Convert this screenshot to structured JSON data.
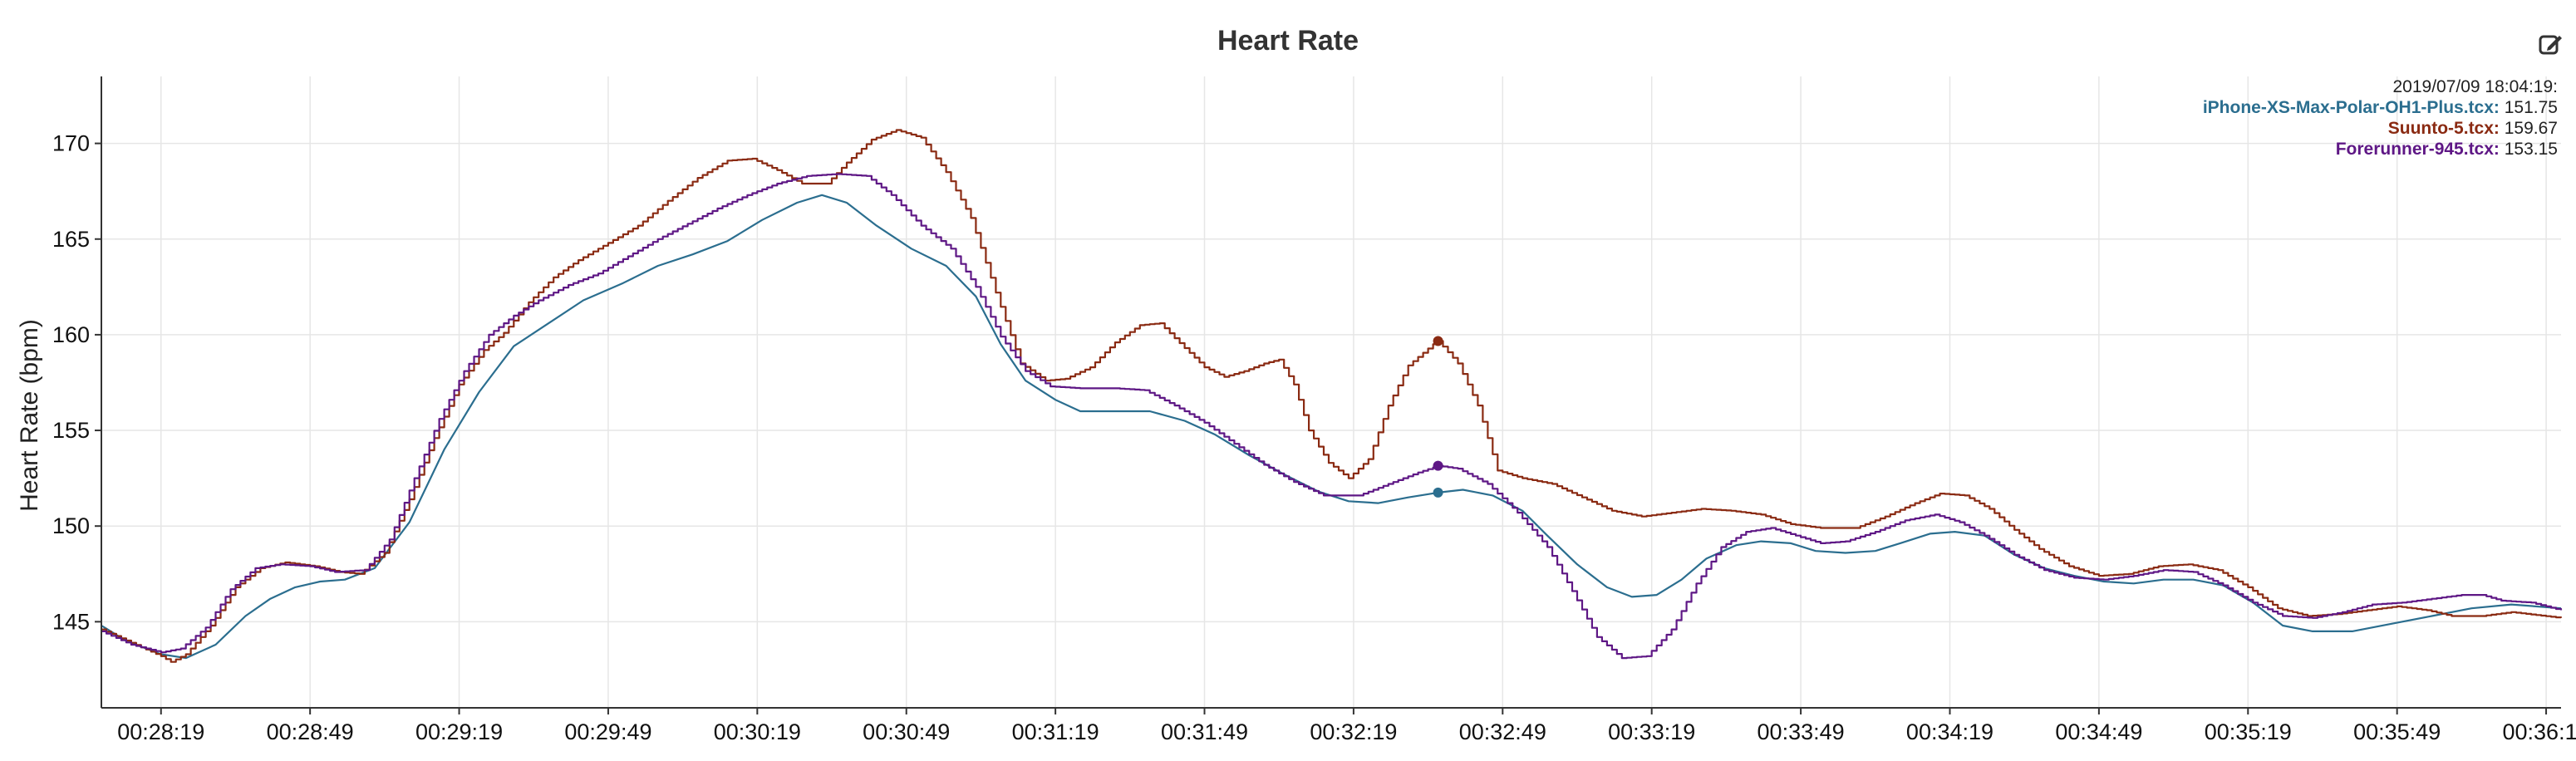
{
  "header": {
    "title": "Heart Rate",
    "export_icon": "edit-icon"
  },
  "legend": {
    "timestamp": "2019/07/09 18:04:19:",
    "items": [
      {
        "name": "iPhone-XS-Max-Polar-OH1-Plus.tcx",
        "sep": ":",
        "value": " 151.75",
        "color": "#2b6e8f"
      },
      {
        "name": "Suunto-5.tcx",
        "sep": ":",
        "value": " 159.67",
        "color": "#8a2a12"
      },
      {
        "name": "Forerunner-945.tcx",
        "sep": ":",
        "value": " 153.15",
        "color": "#5e1785"
      }
    ]
  },
  "chart_data": {
    "type": "line",
    "ylabel": "Heart Rate (bpm)",
    "xlabel": "",
    "xlim": [
      1687,
      2182
    ],
    "ylim": [
      140.5,
      173.5
    ],
    "yticks": [
      145,
      150,
      155,
      160,
      165,
      170
    ],
    "xticks": [
      {
        "t": 1699,
        "label": "00:28:19"
      },
      {
        "t": 1729,
        "label": "00:28:49"
      },
      {
        "t": 1759,
        "label": "00:29:19"
      },
      {
        "t": 1789,
        "label": "00:29:49"
      },
      {
        "t": 1819,
        "label": "00:30:19"
      },
      {
        "t": 1849,
        "label": "00:30:49"
      },
      {
        "t": 1879,
        "label": "00:31:19"
      },
      {
        "t": 1909,
        "label": "00:31:49"
      },
      {
        "t": 1939,
        "label": "00:32:19"
      },
      {
        "t": 1969,
        "label": "00:32:49"
      },
      {
        "t": 1999,
        "label": "00:33:19"
      },
      {
        "t": 2029,
        "label": "00:33:49"
      },
      {
        "t": 2059,
        "label": "00:34:19"
      },
      {
        "t": 2089,
        "label": "00:34:49"
      },
      {
        "t": 2119,
        "label": "00:35:19"
      },
      {
        "t": 2149,
        "label": "00:35:49"
      },
      {
        "t": 2179,
        "label": "00:36:19"
      }
    ],
    "grid": true,
    "cursor": {
      "t": 1956
    },
    "series": [
      {
        "name": "iPhone-XS-Max-Polar-OH1-Plus.tcx",
        "color": "#2b6e8f",
        "step": false,
        "points": [
          [
            1687,
            144.8
          ],
          [
            1692,
            144.0
          ],
          [
            1699,
            143.3
          ],
          [
            1704,
            143.1
          ],
          [
            1710,
            143.8
          ],
          [
            1716,
            145.3
          ],
          [
            1721,
            146.2
          ],
          [
            1726,
            146.8
          ],
          [
            1731,
            147.1
          ],
          [
            1736,
            147.2
          ],
          [
            1742,
            147.8
          ],
          [
            1749,
            150.2
          ],
          [
            1756,
            154.0
          ],
          [
            1763,
            157.0
          ],
          [
            1770,
            159.4
          ],
          [
            1777,
            160.6
          ],
          [
            1784,
            161.8
          ],
          [
            1792,
            162.7
          ],
          [
            1799,
            163.6
          ],
          [
            1806,
            164.2
          ],
          [
            1813,
            164.9
          ],
          [
            1820,
            166.0
          ],
          [
            1827,
            166.9
          ],
          [
            1832,
            167.3
          ],
          [
            1837,
            166.9
          ],
          [
            1843,
            165.7
          ],
          [
            1850,
            164.5
          ],
          [
            1857,
            163.6
          ],
          [
            1863,
            162.0
          ],
          [
            1868,
            159.5
          ],
          [
            1873,
            157.6
          ],
          [
            1879,
            156.6
          ],
          [
            1884,
            156.0
          ],
          [
            1891,
            156.0
          ],
          [
            1898,
            156.0
          ],
          [
            1905,
            155.5
          ],
          [
            1911,
            154.8
          ],
          [
            1918,
            153.7
          ],
          [
            1925,
            152.7
          ],
          [
            1932,
            151.8
          ],
          [
            1938,
            151.3
          ],
          [
            1944,
            151.2
          ],
          [
            1950,
            151.5
          ],
          [
            1956,
            151.75
          ],
          [
            1961,
            151.9
          ],
          [
            1967,
            151.6
          ],
          [
            1973,
            150.8
          ],
          [
            1978,
            149.5
          ],
          [
            1984,
            148.0
          ],
          [
            1990,
            146.8
          ],
          [
            1995,
            146.3
          ],
          [
            2000,
            146.4
          ],
          [
            2005,
            147.2
          ],
          [
            2010,
            148.3
          ],
          [
            2016,
            149.0
          ],
          [
            2021,
            149.2
          ],
          [
            2027,
            149.1
          ],
          [
            2032,
            148.7
          ],
          [
            2038,
            148.6
          ],
          [
            2044,
            148.7
          ],
          [
            2049,
            149.1
          ],
          [
            2055,
            149.6
          ],
          [
            2060,
            149.7
          ],
          [
            2066,
            149.5
          ],
          [
            2072,
            148.5
          ],
          [
            2078,
            147.8
          ],
          [
            2084,
            147.4
          ],
          [
            2090,
            147.1
          ],
          [
            2096,
            147.0
          ],
          [
            2102,
            147.2
          ],
          [
            2108,
            147.2
          ],
          [
            2114,
            146.9
          ],
          [
            2120,
            146.0
          ],
          [
            2126,
            144.8
          ],
          [
            2132,
            144.5
          ],
          [
            2140,
            144.5
          ],
          [
            2148,
            144.9
          ],
          [
            2156,
            145.3
          ],
          [
            2164,
            145.7
          ],
          [
            2172,
            145.9
          ],
          [
            2182,
            145.7
          ]
        ]
      },
      {
        "name": "Suunto-5.tcx",
        "color": "#8a2a12",
        "step": true,
        "points": [
          [
            1687,
            144.6
          ],
          [
            1693,
            143.9
          ],
          [
            1699,
            143.2
          ],
          [
            1701,
            142.9
          ],
          [
            1704,
            143.3
          ],
          [
            1709,
            144.8
          ],
          [
            1714,
            146.8
          ],
          [
            1719,
            147.8
          ],
          [
            1724,
            148.1
          ],
          [
            1730,
            147.9
          ],
          [
            1735,
            147.6
          ],
          [
            1739,
            147.5
          ],
          [
            1744,
            148.6
          ],
          [
            1749,
            151.4
          ],
          [
            1754,
            154.6
          ],
          [
            1759,
            157.4
          ],
          [
            1764,
            159.2
          ],
          [
            1768,
            160.1
          ],
          [
            1773,
            161.7
          ],
          [
            1778,
            163.0
          ],
          [
            1783,
            163.9
          ],
          [
            1789,
            164.8
          ],
          [
            1795,
            165.7
          ],
          [
            1801,
            167.0
          ],
          [
            1807,
            168.2
          ],
          [
            1813,
            169.1
          ],
          [
            1818,
            169.2
          ],
          [
            1823,
            168.6
          ],
          [
            1828,
            167.9
          ],
          [
            1833,
            167.9
          ],
          [
            1837,
            169.0
          ],
          [
            1842,
            170.2
          ],
          [
            1847,
            170.7
          ],
          [
            1852,
            170.3
          ],
          [
            1857,
            168.5
          ],
          [
            1862,
            166.1
          ],
          [
            1867,
            162.2
          ],
          [
            1872,
            158.5
          ],
          [
            1877,
            157.6
          ],
          [
            1881,
            157.7
          ],
          [
            1886,
            158.3
          ],
          [
            1891,
            159.6
          ],
          [
            1896,
            160.5
          ],
          [
            1900,
            160.6
          ],
          [
            1905,
            159.3
          ],
          [
            1909,
            158.3
          ],
          [
            1913,
            157.8
          ],
          [
            1917,
            158.1
          ],
          [
            1921,
            158.5
          ],
          [
            1924,
            158.7
          ],
          [
            1927,
            157.4
          ],
          [
            1930,
            155.0
          ],
          [
            1934,
            153.3
          ],
          [
            1938,
            152.5
          ],
          [
            1942,
            153.5
          ],
          [
            1946,
            156.3
          ],
          [
            1950,
            158.4
          ],
          [
            1955,
            159.5
          ],
          [
            1956,
            159.67
          ],
          [
            1960,
            158.5
          ],
          [
            1964,
            156.3
          ],
          [
            1968,
            152.9
          ],
          [
            1973,
            152.5
          ],
          [
            1979,
            152.2
          ],
          [
            1985,
            151.5
          ],
          [
            1991,
            150.8
          ],
          [
            1997,
            150.5
          ],
          [
            2003,
            150.7
          ],
          [
            2009,
            150.9
          ],
          [
            2015,
            150.8
          ],
          [
            2021,
            150.6
          ],
          [
            2027,
            150.1
          ],
          [
            2033,
            149.9
          ],
          [
            2040,
            149.9
          ],
          [
            2046,
            150.5
          ],
          [
            2052,
            151.2
          ],
          [
            2057,
            151.7
          ],
          [
            2062,
            151.6
          ],
          [
            2067,
            150.9
          ],
          [
            2072,
            149.8
          ],
          [
            2077,
            148.8
          ],
          [
            2083,
            147.9
          ],
          [
            2089,
            147.4
          ],
          [
            2095,
            147.5
          ],
          [
            2101,
            147.9
          ],
          [
            2107,
            148.0
          ],
          [
            2113,
            147.7
          ],
          [
            2119,
            146.8
          ],
          [
            2125,
            145.7
          ],
          [
            2131,
            145.3
          ],
          [
            2137,
            145.4
          ],
          [
            2143,
            145.6
          ],
          [
            2149,
            145.8
          ],
          [
            2155,
            145.6
          ],
          [
            2160,
            145.3
          ],
          [
            2166,
            145.3
          ],
          [
            2172,
            145.5
          ],
          [
            2182,
            145.2
          ]
        ]
      },
      {
        "name": "Forerunner-945.tcx",
        "color": "#5e1785",
        "step": true,
        "points": [
          [
            1687,
            144.5
          ],
          [
            1693,
            143.8
          ],
          [
            1699,
            143.4
          ],
          [
            1703,
            143.6
          ],
          [
            1708,
            144.7
          ],
          [
            1713,
            146.7
          ],
          [
            1718,
            147.8
          ],
          [
            1723,
            148.0
          ],
          [
            1729,
            147.9
          ],
          [
            1734,
            147.6
          ],
          [
            1740,
            147.7
          ],
          [
            1745,
            149.3
          ],
          [
            1750,
            152.5
          ],
          [
            1755,
            155.6
          ],
          [
            1760,
            158.1
          ],
          [
            1765,
            160.0
          ],
          [
            1770,
            161.0
          ],
          [
            1775,
            161.8
          ],
          [
            1781,
            162.6
          ],
          [
            1787,
            163.2
          ],
          [
            1793,
            164.1
          ],
          [
            1799,
            165.0
          ],
          [
            1805,
            165.8
          ],
          [
            1811,
            166.6
          ],
          [
            1817,
            167.3
          ],
          [
            1823,
            167.9
          ],
          [
            1829,
            168.3
          ],
          [
            1835,
            168.4
          ],
          [
            1841,
            168.3
          ],
          [
            1846,
            167.3
          ],
          [
            1852,
            165.7
          ],
          [
            1858,
            164.5
          ],
          [
            1863,
            162.5
          ],
          [
            1868,
            159.9
          ],
          [
            1873,
            158.1
          ],
          [
            1878,
            157.3
          ],
          [
            1884,
            157.2
          ],
          [
            1891,
            157.2
          ],
          [
            1897,
            157.1
          ],
          [
            1903,
            156.3
          ],
          [
            1909,
            155.4
          ],
          [
            1915,
            154.3
          ],
          [
            1921,
            153.2
          ],
          [
            1927,
            152.3
          ],
          [
            1933,
            151.6
          ],
          [
            1940,
            151.6
          ],
          [
            1946,
            152.2
          ],
          [
            1952,
            152.8
          ],
          [
            1956,
            153.15
          ],
          [
            1960,
            153.0
          ],
          [
            1966,
            152.2
          ],
          [
            1972,
            150.7
          ],
          [
            1978,
            148.9
          ],
          [
            1983,
            146.6
          ],
          [
            1988,
            144.2
          ],
          [
            1993,
            143.1
          ],
          [
            1998,
            143.2
          ],
          [
            2003,
            144.6
          ],
          [
            2008,
            147.0
          ],
          [
            2013,
            148.9
          ],
          [
            2018,
            149.7
          ],
          [
            2023,
            149.9
          ],
          [
            2028,
            149.5
          ],
          [
            2033,
            149.1
          ],
          [
            2038,
            149.2
          ],
          [
            2044,
            149.7
          ],
          [
            2050,
            150.3
          ],
          [
            2056,
            150.6
          ],
          [
            2061,
            150.2
          ],
          [
            2066,
            149.5
          ],
          [
            2072,
            148.5
          ],
          [
            2078,
            147.7
          ],
          [
            2084,
            147.3
          ],
          [
            2090,
            147.2
          ],
          [
            2096,
            147.4
          ],
          [
            2102,
            147.7
          ],
          [
            2108,
            147.6
          ],
          [
            2114,
            146.9
          ],
          [
            2120,
            146.0
          ],
          [
            2126,
            145.3
          ],
          [
            2132,
            145.2
          ],
          [
            2138,
            145.5
          ],
          [
            2144,
            145.9
          ],
          [
            2150,
            146.0
          ],
          [
            2156,
            146.2
          ],
          [
            2162,
            146.4
          ],
          [
            2166,
            146.4
          ],
          [
            2170,
            146.1
          ],
          [
            2176,
            146.0
          ],
          [
            2182,
            145.6
          ]
        ]
      }
    ]
  }
}
